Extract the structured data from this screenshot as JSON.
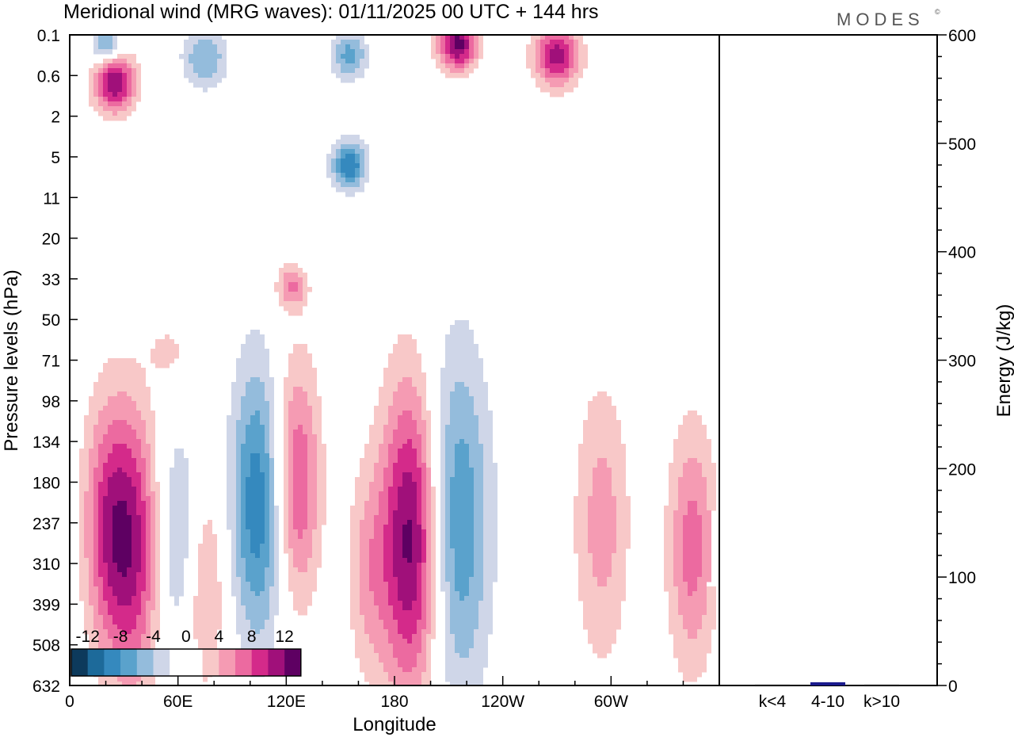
{
  "header": {
    "title": "Meridional wind (MRG waves):  01/11/2025  00 UTC  + 144 hrs",
    "logo": "MODES",
    "logo_mark": "©"
  },
  "chart_data": [
    {
      "type": "heatmap",
      "title": "Meridional wind (MRG waves)",
      "xlabel": "Longitude",
      "ylabel": "Pressure levels (hPa)",
      "x_ticks": [
        "0",
        "60E",
        "120E",
        "180",
        "120W",
        "60W"
      ],
      "x_range_deg": [
        0,
        360
      ],
      "y_ticks": [
        "0.1",
        "0.6",
        "2",
        "5",
        "11",
        "20",
        "33",
        "50",
        "71",
        "98",
        "134",
        "180",
        "237",
        "310",
        "399",
        "508",
        "632"
      ],
      "colorbar": {
        "ticks": [
          "-12",
          "-8",
          "-4",
          "0",
          "4",
          "8",
          "12"
        ],
        "levels": [
          -14,
          -12,
          -10,
          -8,
          -6,
          -4,
          -2,
          0,
          2,
          4,
          6,
          8,
          10,
          12,
          14
        ],
        "colors": [
          "#0d3a5c",
          "#1d6a9a",
          "#3589be",
          "#5aa2cc",
          "#94bcdc",
          "#cfd6e8",
          "#ffffff",
          "#ffffff",
          "#f8c8c8",
          "#f59bb3",
          "#ec6aa0",
          "#d42a8a",
          "#a0107a",
          "#5e0062"
        ]
      },
      "features": [
        {
          "lon": 25,
          "lev": 1.2,
          "value": 12,
          "size": 1.2
        },
        {
          "lon": 20,
          "lev": 0.22,
          "value": -7,
          "size": 0.8
        },
        {
          "lon": 75,
          "lev": 0.55,
          "value": -6,
          "size": 1.3
        },
        {
          "lon": 155,
          "lev": 0.5,
          "value": -7,
          "size": 1.0
        },
        {
          "lon": 155,
          "lev": 3.2,
          "value": -10,
          "size": 1.0
        },
        {
          "lon": 215,
          "lev": 0.22,
          "value": 13,
          "size": 1.1
        },
        {
          "lon": 270,
          "lev": 0.5,
          "value": 11,
          "size": 1.3
        },
        {
          "lon": 123,
          "lev": 6.2,
          "value": 6,
          "size": 0.9
        },
        {
          "lon": 55,
          "lev": 7.8,
          "value": 3,
          "size": 1.0
        },
        {
          "lon": 35,
          "lev": 12.6,
          "value": 10,
          "size": 1.6
        },
        {
          "lon": 20,
          "lev": 12.0,
          "value": 7,
          "size": 1.4
        },
        {
          "lon": 60,
          "lev": 12.4,
          "value": -5,
          "size": 1.3
        },
        {
          "lon": 105,
          "lev": 11.5,
          "value": -10,
          "size": 1.6
        },
        {
          "lon": 125,
          "lev": 11.0,
          "value": 9,
          "size": 1.4
        },
        {
          "lon": 190,
          "lev": 12.4,
          "value": 14,
          "size": 1.8
        },
        {
          "lon": 213,
          "lev": 12.0,
          "value": -9,
          "size": 2.0
        },
        {
          "lon": 295,
          "lev": 12.0,
          "value": 5,
          "size": 1.6
        },
        {
          "lon": 345,
          "lev": 12.6,
          "value": 7,
          "size": 1.4
        },
        {
          "lon": 75,
          "lev": 13.6,
          "value": 5,
          "size": 1.2
        },
        {
          "lon": 165,
          "lev": 13.2,
          "value": 4,
          "size": 1.2
        }
      ]
    },
    {
      "type": "bar",
      "categories": [
        "k<4",
        "4-10",
        "k>10"
      ],
      "values": [
        0,
        3,
        0
      ],
      "ylabel": "Energy (J/kg)",
      "ylim": [
        0,
        600
      ],
      "y_ticks": [
        0,
        100,
        200,
        300,
        400,
        500,
        600
      ]
    }
  ]
}
